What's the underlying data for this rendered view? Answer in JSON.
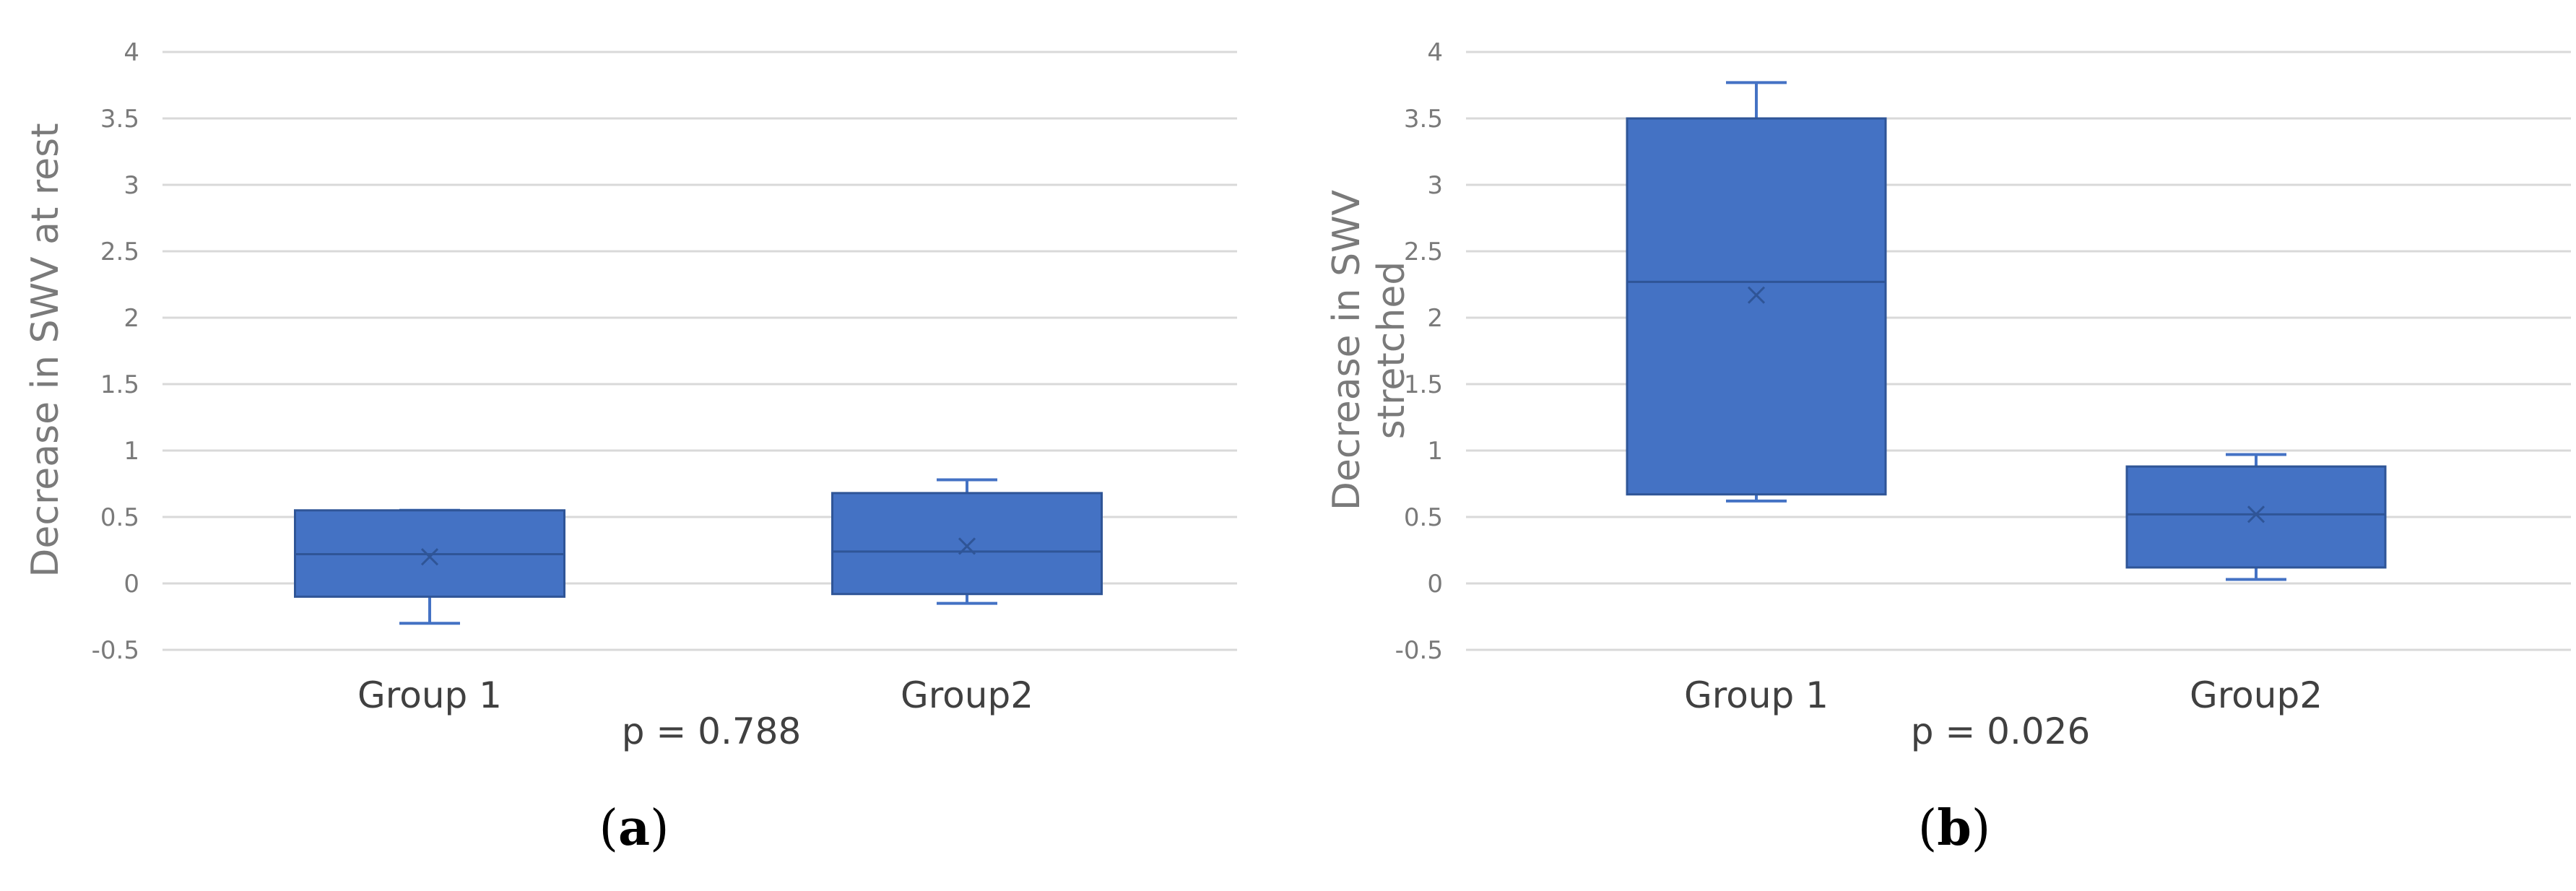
{
  "chart_data": [
    {
      "type": "box",
      "panel_label": "(a)",
      "ylabel": "Decrease in SWV at rest",
      "ylabel_lines": [
        "Decrease in SWV at rest"
      ],
      "ylim": [
        -0.5,
        4
      ],
      "yticks": [
        "-0.5",
        "0",
        "0.5",
        "1",
        "1.5",
        "2",
        "2.5",
        "3",
        "3.5",
        "4"
      ],
      "grid": true,
      "categories": [
        "Group 1",
        "Group2"
      ],
      "boxes": [
        {
          "name": "Group 1",
          "whisker_low": -0.3,
          "q1": -0.1,
          "median": 0.22,
          "q3": 0.55,
          "whisker_high": 0.55,
          "mean": 0.2
        },
        {
          "name": "Group2",
          "whisker_low": -0.15,
          "q1": -0.08,
          "median": 0.24,
          "q3": 0.68,
          "whisker_high": 0.78,
          "mean": 0.28
        }
      ],
      "annotation": "p = 0.788",
      "box_color": "#4472c4",
      "box_edge_color": "#2f5597"
    },
    {
      "type": "box",
      "panel_label": "(b)",
      "ylabel": "Decrease in SWV stretched",
      "ylabel_lines": [
        "Decrease in  SWV",
        "stretched"
      ],
      "ylim": [
        -0.5,
        4
      ],
      "yticks": [
        "-0.5",
        "0",
        "0.5",
        "1",
        "1.5",
        "2",
        "2.5",
        "3",
        "3.5",
        "4"
      ],
      "grid": true,
      "categories": [
        "Group 1",
        "Group2"
      ],
      "boxes": [
        {
          "name": "Group 1",
          "whisker_low": 0.62,
          "q1": 0.67,
          "median": 2.27,
          "q3": 3.5,
          "whisker_high": 3.77,
          "mean": 2.17
        },
        {
          "name": "Group2",
          "whisker_low": 0.03,
          "q1": 0.12,
          "median": 0.52,
          "q3": 0.88,
          "whisker_high": 0.97,
          "mean": 0.52
        }
      ],
      "annotation": "p = 0.026",
      "box_color": "#4472c4",
      "box_edge_color": "#2f5597"
    }
  ]
}
